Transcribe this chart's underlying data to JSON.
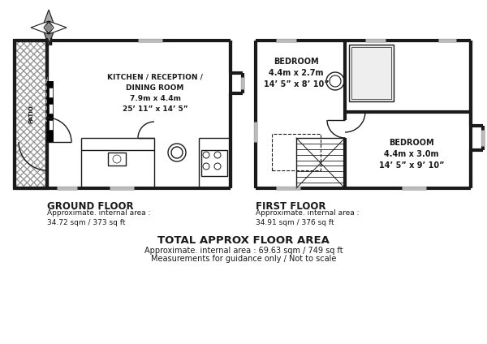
{
  "bg_color": "#ffffff",
  "wall_color": "#1a1a1a",
  "wall_lw": 3.0,
  "thin_lw": 1.0,
  "title": "TOTAL APPROX FLOOR AREA",
  "ground_floor_label": "GROUND FLOOR",
  "first_floor_label": "FIRST FLOOR",
  "gf_area_line1": "Approximate. internal area :",
  "gf_area_line2": "34.72 sqm / 373 sq ft",
  "ff_area_line1": "Approximate. internal area :",
  "ff_area_line2": "34.91 sqm / 376 sq ft",
  "total_line1": "Approximate. internal area : 69.63 sqm / 749 sq ft",
  "total_line2": "Measurements for guidance only / Not to scale",
  "kitchen_label": "KITCHEN / RECEPTION /\nDINING ROOM\n7.9m x 4.4m\n25’ 11” x 14’ 5”",
  "patio_label": "PATIO",
  "bedroom1_label": "BEDROOM\n4.4m x 2.7m\n14’ 5” x 8’ 10”",
  "bedroom2_label": "BEDROOM\n4.4m x 3.0m\n14’ 5” x 9’ 10”"
}
